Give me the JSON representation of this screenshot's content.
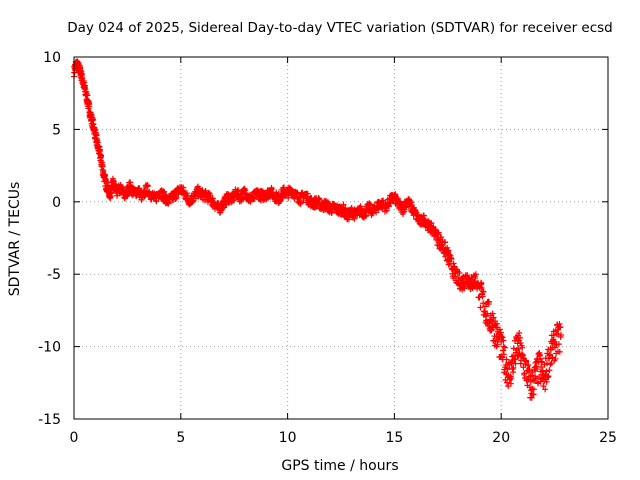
{
  "chart_data": {
    "type": "scatter",
    "title": "Day 024 of 2025, Sidereal Day-to-day VTEC variation (SDTVAR) for receiver ecsd",
    "xlabel": "GPS time / hours",
    "ylabel": "SDTVAR / TECUs",
    "xlim": [
      0,
      25
    ],
    "ylim": [
      -15,
      10
    ],
    "xticks": [
      0,
      5,
      10,
      15,
      20,
      25
    ],
    "yticks": [
      -15,
      -10,
      -5,
      0,
      5,
      10
    ],
    "x_tick_labels": [
      "0",
      "5",
      "10",
      "15",
      "20",
      "25"
    ],
    "y_tick_labels": [
      "-15",
      "-10",
      "-5",
      "0",
      "5",
      "10"
    ],
    "grid": true,
    "marker": "+",
    "series": [
      {
        "name": "SDTVAR",
        "color": "#ff0000",
        "x": [
          0.0,
          0.1,
          0.2,
          0.3,
          0.4,
          0.5,
          0.6,
          0.7,
          0.8,
          0.9,
          1.0,
          1.1,
          1.2,
          1.3,
          1.4,
          1.5,
          1.6,
          1.7,
          1.8,
          1.9,
          2.0,
          2.2,
          2.4,
          2.6,
          2.8,
          3.0,
          3.2,
          3.4,
          3.6,
          3.8,
          4.0,
          4.2,
          4.4,
          4.6,
          4.8,
          5.0,
          5.2,
          5.4,
          5.6,
          5.8,
          6.0,
          6.2,
          6.4,
          6.6,
          6.8,
          7.0,
          7.2,
          7.4,
          7.6,
          7.8,
          8.0,
          8.2,
          8.4,
          8.6,
          8.8,
          9.0,
          9.2,
          9.4,
          9.6,
          9.8,
          10.0,
          10.2,
          10.4,
          10.6,
          10.8,
          11.0,
          11.2,
          11.4,
          11.6,
          11.8,
          12.0,
          12.2,
          12.4,
          12.6,
          12.8,
          13.0,
          13.2,
          13.4,
          13.6,
          13.8,
          14.0,
          14.2,
          14.4,
          14.6,
          14.8,
          15.0,
          15.2,
          15.4,
          15.6,
          15.8,
          16.0,
          16.2,
          16.4,
          16.6,
          16.8,
          17.0,
          17.2,
          17.4,
          17.6,
          17.8,
          18.0,
          18.2,
          18.4,
          18.6,
          18.8,
          19.0,
          19.2,
          19.4,
          19.6,
          19.8,
          20.0,
          20.2,
          20.4,
          20.6,
          20.8,
          21.0,
          21.2,
          21.4,
          21.6,
          21.8,
          22.0,
          22.2,
          22.4,
          22.6,
          22.8
        ],
        "y": [
          9.0,
          9.5,
          9.3,
          9.0,
          8.4,
          7.8,
          7.2,
          6.5,
          5.8,
          5.3,
          4.6,
          3.9,
          3.4,
          2.6,
          1.8,
          1.2,
          0.8,
          0.5,
          1.4,
          0.9,
          0.7,
          0.9,
          0.4,
          1.1,
          0.6,
          0.8,
          0.3,
          0.9,
          0.5,
          0.2,
          0.7,
          0.4,
          0.0,
          0.3,
          0.6,
          0.9,
          0.5,
          0.1,
          0.3,
          0.7,
          0.5,
          0.4,
          0.2,
          -0.2,
          -0.5,
          -0.1,
          0.3,
          0.2,
          0.6,
          0.3,
          0.7,
          0.2,
          0.3,
          0.6,
          0.4,
          0.5,
          0.7,
          0.4,
          0.2,
          0.7,
          0.6,
          0.8,
          0.4,
          0.2,
          0.5,
          0.1,
          -0.1,
          0.0,
          -0.3,
          -0.2,
          -0.5,
          -0.4,
          -0.6,
          -0.5,
          -1.0,
          -0.7,
          -0.9,
          -0.6,
          -0.8,
          -0.4,
          -0.7,
          -0.3,
          -0.1,
          -0.4,
          0.1,
          0.3,
          -0.2,
          -0.5,
          0.1,
          -0.4,
          -0.9,
          -1.4,
          -1.2,
          -1.7,
          -1.9,
          -2.4,
          -2.9,
          -3.4,
          -4.1,
          -4.9,
          -5.4,
          -5.6,
          -5.2,
          -5.7,
          -5.3,
          -6.4,
          -7.1,
          -7.9,
          -8.4,
          -9.3,
          -10.1,
          -11.2,
          -12.0,
          -10.8,
          -9.9,
          -10.9,
          -11.8,
          -12.9,
          -12.0,
          -11.4,
          -12.4,
          -11.0,
          -10.2,
          -9.6,
          -9.2
        ]
      }
    ]
  }
}
